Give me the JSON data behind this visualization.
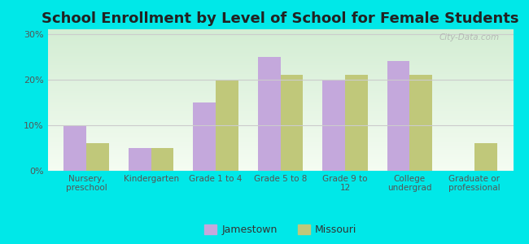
{
  "title": "School Enrollment by Level of School for Female Students",
  "categories": [
    "Nursery,\npreschool",
    "Kindergarten",
    "Grade 1 to 4",
    "Grade 5 to 8",
    "Grade 9 to\n12",
    "College\nundergrad",
    "Graduate or\nprofessional"
  ],
  "jamestown": [
    10,
    5,
    15,
    25,
    20,
    24,
    0
  ],
  "missouri": [
    6,
    5,
    20,
    21,
    21,
    21,
    6
  ],
  "jamestown_color": "#c4a8dc",
  "missouri_color": "#c0c87a",
  "background_outer": "#00e8e8",
  "background_plot_top": "#d4ecd4",
  "background_plot_bottom": "#f5faf0",
  "title_fontsize": 13,
  "ylabel_ticks": [
    "0%",
    "10%",
    "20%",
    "30%"
  ],
  "yticks": [
    0,
    10,
    20,
    30
  ],
  "ylim": [
    0,
    31
  ],
  "legend_labels": [
    "Jamestown",
    "Missouri"
  ],
  "bar_width": 0.35,
  "figsize": [
    6.5,
    3.0
  ],
  "dpi": 100
}
